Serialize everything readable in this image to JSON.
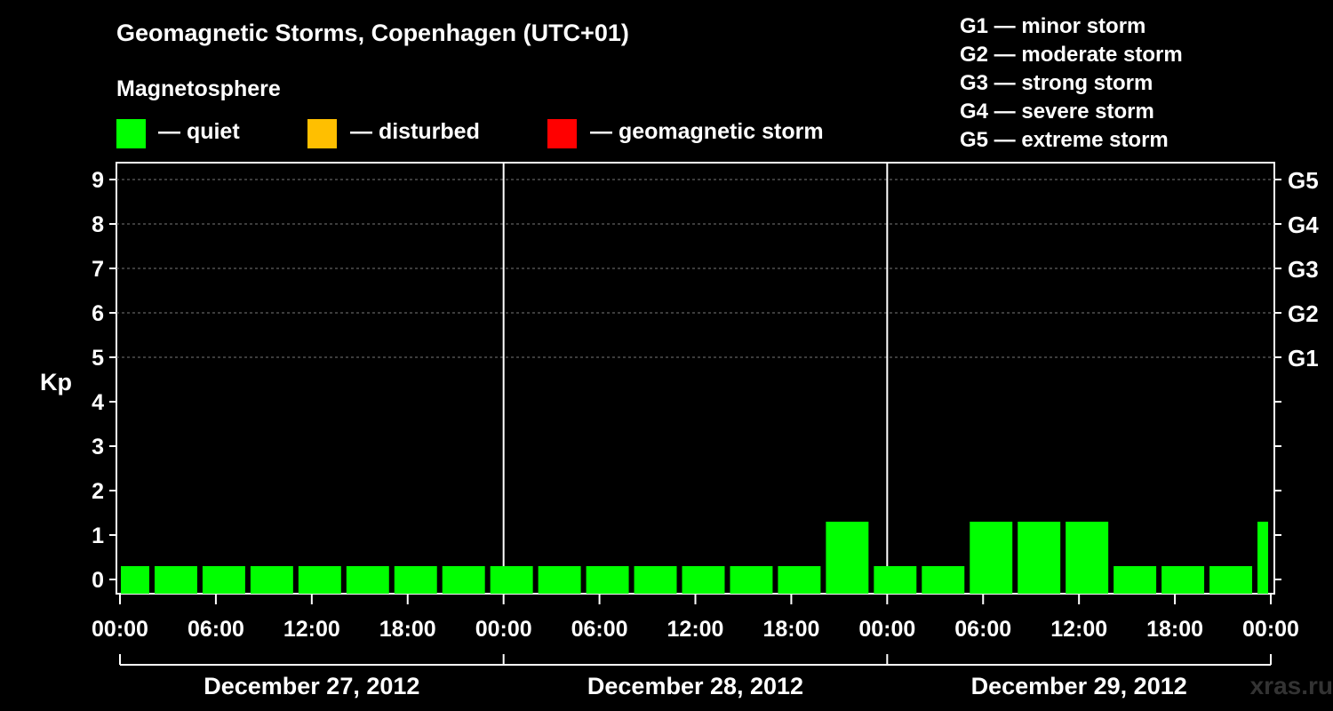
{
  "title": "Geomagnetic Storms, Copenhagen (UTC+01)",
  "legend": {
    "title": "Magnetosphere",
    "items": [
      {
        "label": "— quiet",
        "color": "#00ff00"
      },
      {
        "label": "— disturbed",
        "color": "#ffbf00"
      },
      {
        "label": "— geomagnetic storm",
        "color": "#ff0000"
      }
    ]
  },
  "g_scale": [
    "G1 — minor storm",
    "G2 — moderate storm",
    "G3 — strong storm",
    "G4 — severe storm",
    "G5 — extreme storm"
  ],
  "watermark": "xras.ru",
  "chart_data": {
    "type": "bar",
    "title": "Geomagnetic Storms, Copenhagen (UTC+01)",
    "ylabel": "Kp",
    "ylim": [
      0,
      9
    ],
    "y_ticks": [
      "0",
      "1",
      "2",
      "3",
      "4",
      "5",
      "6",
      "7",
      "8",
      "9"
    ],
    "right_ticks": [
      {
        "kp": 5,
        "label": "G1"
      },
      {
        "kp": 6,
        "label": "G2"
      },
      {
        "kp": 7,
        "label": "G3"
      },
      {
        "kp": 8,
        "label": "G4"
      },
      {
        "kp": 9,
        "label": "G5"
      }
    ],
    "x_tick_labels": [
      "00:00",
      "06:00",
      "12:00",
      "18:00",
      "00:00",
      "06:00",
      "12:00",
      "18:00",
      "00:00",
      "06:00",
      "12:00",
      "18:00",
      "00:00"
    ],
    "days": [
      "December 27, 2012",
      "December 28, 2012",
      "December 29, 2012"
    ],
    "interval_hours": 3,
    "series": [
      {
        "name": "Kp",
        "values": [
          0,
          0,
          0,
          0,
          0,
          0,
          0,
          0,
          0,
          0,
          0,
          0,
          0,
          0,
          0,
          1,
          0,
          0,
          1,
          1,
          1,
          0,
          0,
          0,
          1
        ]
      }
    ],
    "start_offset_hours": -1,
    "grid": true
  }
}
